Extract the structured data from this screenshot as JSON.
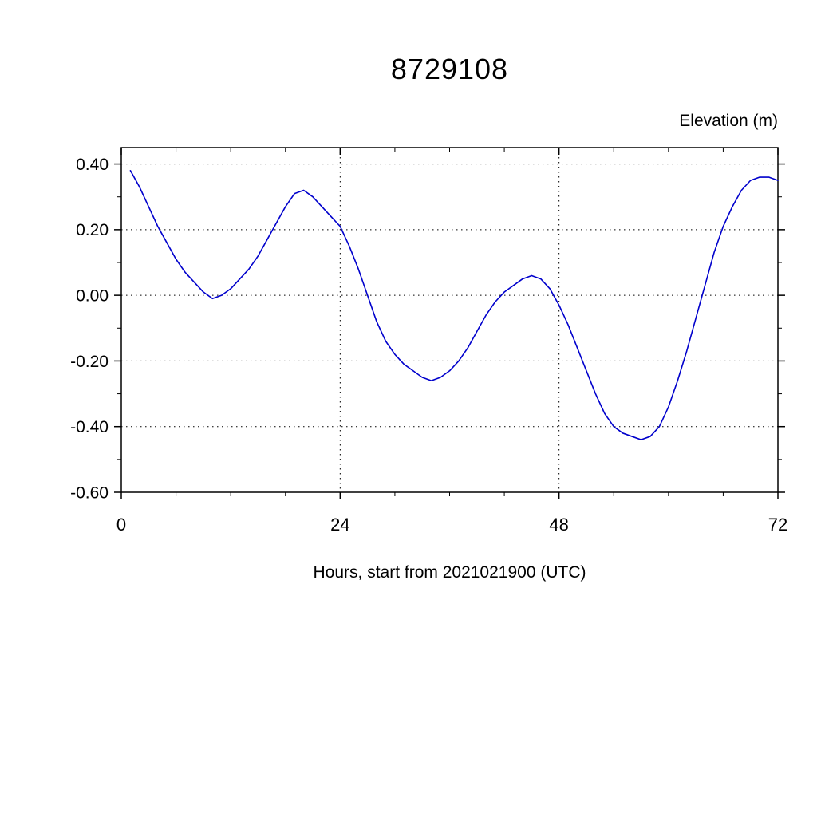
{
  "chart_data": {
    "type": "line",
    "title": "8729108",
    "ylabel": "Elevation (m)",
    "xlabel": "Hours, start from 2021021900 (UTC)",
    "xlim": [
      0,
      72
    ],
    "ylim": [
      -0.6,
      0.45
    ],
    "xticks": {
      "major": [
        0,
        24,
        48,
        72
      ],
      "labels": [
        "0",
        "24",
        "48",
        "72"
      ],
      "minor": [
        6,
        12,
        18,
        30,
        36,
        42,
        54,
        60,
        66
      ]
    },
    "yticks": {
      "major": [
        0.4,
        0.2,
        0.0,
        -0.2,
        -0.4,
        -0.6
      ],
      "labels": [
        "0.40",
        "0.20",
        "0.00",
        "-0.20",
        "-0.40",
        "-0.60"
      ],
      "minor": [
        0.3,
        0.1,
        -0.1,
        -0.3,
        -0.5
      ]
    },
    "grid": {
      "x": [
        24,
        48
      ],
      "y": [
        0.4,
        0.2,
        0.0,
        -0.2,
        -0.4
      ],
      "style": "dotted"
    },
    "line_color": "#0000cc",
    "frame_color": "#000000",
    "series": [
      {
        "name": "elevation",
        "x": [
          1,
          2,
          3,
          4,
          5,
          6,
          7,
          8,
          9,
          10,
          11,
          12,
          13,
          14,
          15,
          16,
          17,
          18,
          19,
          20,
          21,
          22,
          23,
          24,
          25,
          26,
          27,
          28,
          29,
          30,
          31,
          32,
          33,
          34,
          35,
          36,
          37,
          38,
          39,
          40,
          41,
          42,
          43,
          44,
          45,
          46,
          47,
          48,
          49,
          50,
          51,
          52,
          53,
          54,
          55,
          56,
          57,
          58,
          59,
          60,
          61,
          62,
          63,
          64,
          65,
          66,
          67,
          68,
          69,
          70,
          71,
          72
        ],
        "y": [
          0.38,
          0.33,
          0.27,
          0.21,
          0.16,
          0.11,
          0.07,
          0.04,
          0.01,
          -0.01,
          0.0,
          0.02,
          0.05,
          0.08,
          0.12,
          0.17,
          0.22,
          0.27,
          0.31,
          0.32,
          0.3,
          0.27,
          0.24,
          0.21,
          0.15,
          0.08,
          0.0,
          -0.08,
          -0.14,
          -0.18,
          -0.21,
          -0.23,
          -0.25,
          -0.26,
          -0.25,
          -0.23,
          -0.2,
          -0.16,
          -0.11,
          -0.06,
          -0.02,
          0.01,
          0.03,
          0.05,
          0.06,
          0.05,
          0.02,
          -0.03,
          -0.09,
          -0.16,
          -0.23,
          -0.3,
          -0.36,
          -0.4,
          -0.42,
          -0.43,
          -0.44,
          -0.43,
          -0.4,
          -0.34,
          -0.26,
          -0.17,
          -0.07,
          0.03,
          0.13,
          0.21,
          0.27,
          0.32,
          0.35,
          0.36,
          0.36,
          0.35
        ]
      }
    ]
  }
}
